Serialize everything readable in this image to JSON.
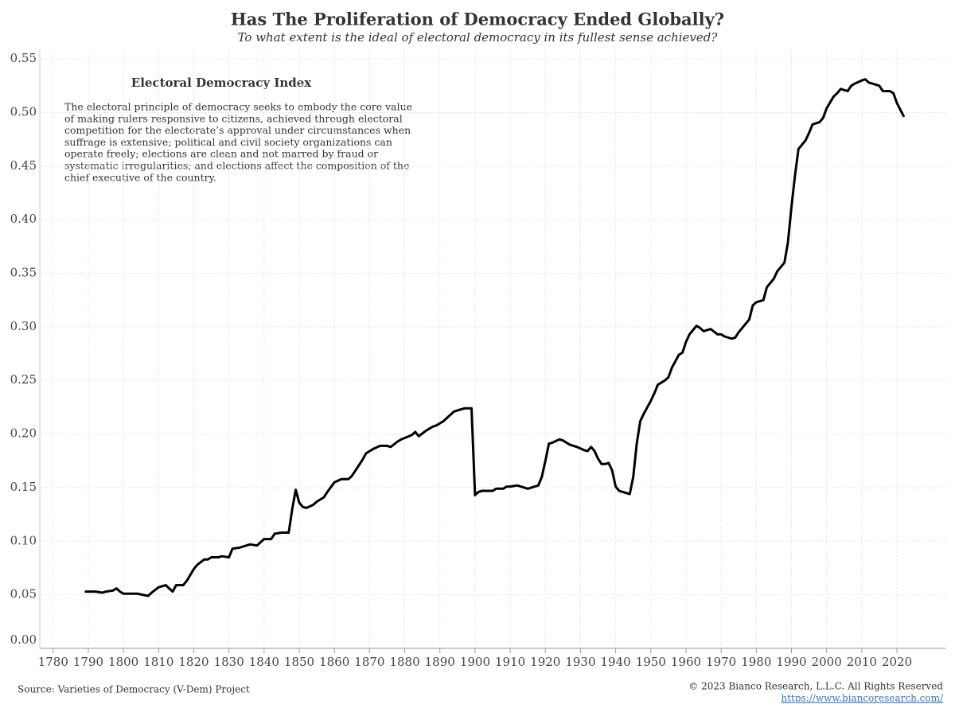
{
  "chart_data": {
    "type": "line",
    "title": "Has The Proliferation of Democracy Ended Globally?",
    "subtitle": "To what extent is the ideal of electoral democracy in its fullest sense achieved?",
    "annotation_title": "Electoral Democracy Index",
    "annotation_lines": [
      "The electoral principle of democracy seeks to embody the core value",
      "of making rulers responsive to citizens, achieved through electoral",
      "competition for the electorate’s approval under circumstances when",
      "suffrage is extensive; political and civil society organizations can",
      "operate freely; elections are clean and not marred by fraud or",
      "systematic irregularities; and elections affect the composition of the",
      "chief executive of the country."
    ],
    "source": "Source: Varieties of Democracy (V-Dem) Project",
    "copyright": "© 2023 Bianco Research, L.L.C. All Rights Reserved",
    "url": "https://www.biancoresearch.com/",
    "xlim": [
      1776.2,
      2033.8
    ],
    "xticks": [
      1780,
      1790,
      1800,
      1810,
      1820,
      1830,
      1840,
      1850,
      1860,
      1870,
      1880,
      1890,
      1900,
      1910,
      1920,
      1930,
      1940,
      1950,
      1960,
      1970,
      1980,
      1990,
      2000,
      2010,
      2020
    ],
    "ylim": [
      0,
      0.559
    ],
    "yticks": [
      {
        "value": 0,
        "label": "0.00"
      },
      0.05,
      {
        "value": 0.1,
        "label": "0.10"
      },
      0.15,
      {
        "value": 0.2,
        "label": "0.20"
      },
      0.25,
      {
        "value": 0.3,
        "label": "0.30"
      },
      0.35,
      {
        "value": 0.4,
        "label": "0.40"
      },
      0.45,
      {
        "value": 0.5,
        "label": "0.50"
      },
      0.55
    ],
    "grid": true,
    "series": [
      {
        "name": "Electoral Democracy Index",
        "color": "#000000",
        "x": [
          1789,
          1792,
          1794,
          1795,
          1797,
          1798,
          1799,
          1800,
          1802,
          1804,
          1807,
          1808,
          1810,
          1812,
          1813,
          1814,
          1815,
          1817,
          1818,
          1820,
          1821,
          1823,
          1824,
          1825,
          1827,
          1828,
          1830,
          1831,
          1833,
          1834,
          1836,
          1838,
          1839,
          1840,
          1842,
          1843,
          1845,
          1847,
          1848,
          1849,
          1850,
          1851,
          1852,
          1854,
          1855,
          1857,
          1858,
          1860,
          1862,
          1864,
          1865,
          1867,
          1868,
          1869,
          1871,
          1873,
          1875,
          1876,
          1878,
          1879,
          1882,
          1883,
          1884,
          1886,
          1888,
          1889,
          1891,
          1892,
          1894,
          1896,
          1897,
          1898,
          1899,
          1900,
          1901,
          1902,
          1903,
          1905,
          1906,
          1908,
          1909,
          1910,
          1912,
          1913,
          1914,
          1915,
          1917,
          1918,
          1919,
          1920,
          1921,
          1922,
          1924,
          1925,
          1927,
          1928,
          1929,
          1931,
          1932,
          1933,
          1934,
          1935,
          1936,
          1937,
          1938,
          1939,
          1940,
          1941,
          1943,
          1944,
          1945,
          1946,
          1947,
          1948,
          1950,
          1951,
          1952,
          1954,
          1955,
          1956,
          1958,
          1959,
          1960,
          1961,
          1963,
          1964,
          1965,
          1967,
          1969,
          1970,
          1971,
          1973,
          1974,
          1975,
          1976,
          1978,
          1979,
          1980,
          1982,
          1983,
          1985,
          1986,
          1988,
          1989,
          1990,
          1991,
          1992,
          1994,
          1995,
          1996,
          1998,
          1999,
          2000,
          2002,
          2003,
          2004,
          2006,
          2007,
          2008,
          2010,
          2011,
          2012,
          2013,
          2015,
          2016,
          2018,
          2019,
          2020,
          2022
        ],
        "values": [
          0.053,
          0.053,
          0.052,
          0.053,
          0.054,
          0.056,
          0.053,
          0.051,
          0.051,
          0.051,
          0.049,
          0.052,
          0.057,
          0.059,
          0.056,
          0.053,
          0.059,
          0.059,
          0.063,
          0.074,
          0.078,
          0.083,
          0.083,
          0.085,
          0.085,
          0.086,
          0.085,
          0.093,
          0.094,
          0.095,
          0.097,
          0.096,
          0.099,
          0.102,
          0.102,
          0.107,
          0.108,
          0.108,
          0.13,
          0.148,
          0.136,
          0.132,
          0.131,
          0.134,
          0.137,
          0.141,
          0.146,
          0.155,
          0.158,
          0.158,
          0.161,
          0.171,
          0.176,
          0.182,
          0.186,
          0.189,
          0.189,
          0.188,
          0.193,
          0.195,
          0.199,
          0.202,
          0.198,
          0.203,
          0.207,
          0.208,
          0.212,
          0.215,
          0.221,
          0.223,
          0.224,
          0.224,
          0.224,
          0.143,
          0.146,
          0.147,
          0.147,
          0.147,
          0.149,
          0.149,
          0.151,
          0.151,
          0.152,
          0.151,
          0.15,
          0.149,
          0.151,
          0.152,
          0.16,
          0.175,
          0.191,
          0.192,
          0.195,
          0.194,
          0.19,
          0.189,
          0.188,
          0.185,
          0.184,
          0.188,
          0.184,
          0.177,
          0.172,
          0.172,
          0.173,
          0.166,
          0.151,
          0.147,
          0.145,
          0.144,
          0.16,
          0.191,
          0.212,
          0.219,
          0.231,
          0.238,
          0.246,
          0.25,
          0.253,
          0.262,
          0.274,
          0.276,
          0.286,
          0.293,
          0.301,
          0.299,
          0.296,
          0.298,
          0.293,
          0.293,
          0.291,
          0.289,
          0.29,
          0.295,
          0.299,
          0.307,
          0.32,
          0.323,
          0.325,
          0.337,
          0.345,
          0.352,
          0.36,
          0.379,
          0.412,
          0.441,
          0.466,
          0.474,
          0.481,
          0.489,
          0.491,
          0.495,
          0.504,
          0.515,
          0.518,
          0.522,
          0.52,
          0.525,
          0.527,
          0.53,
          0.531,
          0.528,
          0.527,
          0.525,
          0.52,
          0.52,
          0.518,
          0.509,
          0.496
        ]
      }
    ]
  }
}
